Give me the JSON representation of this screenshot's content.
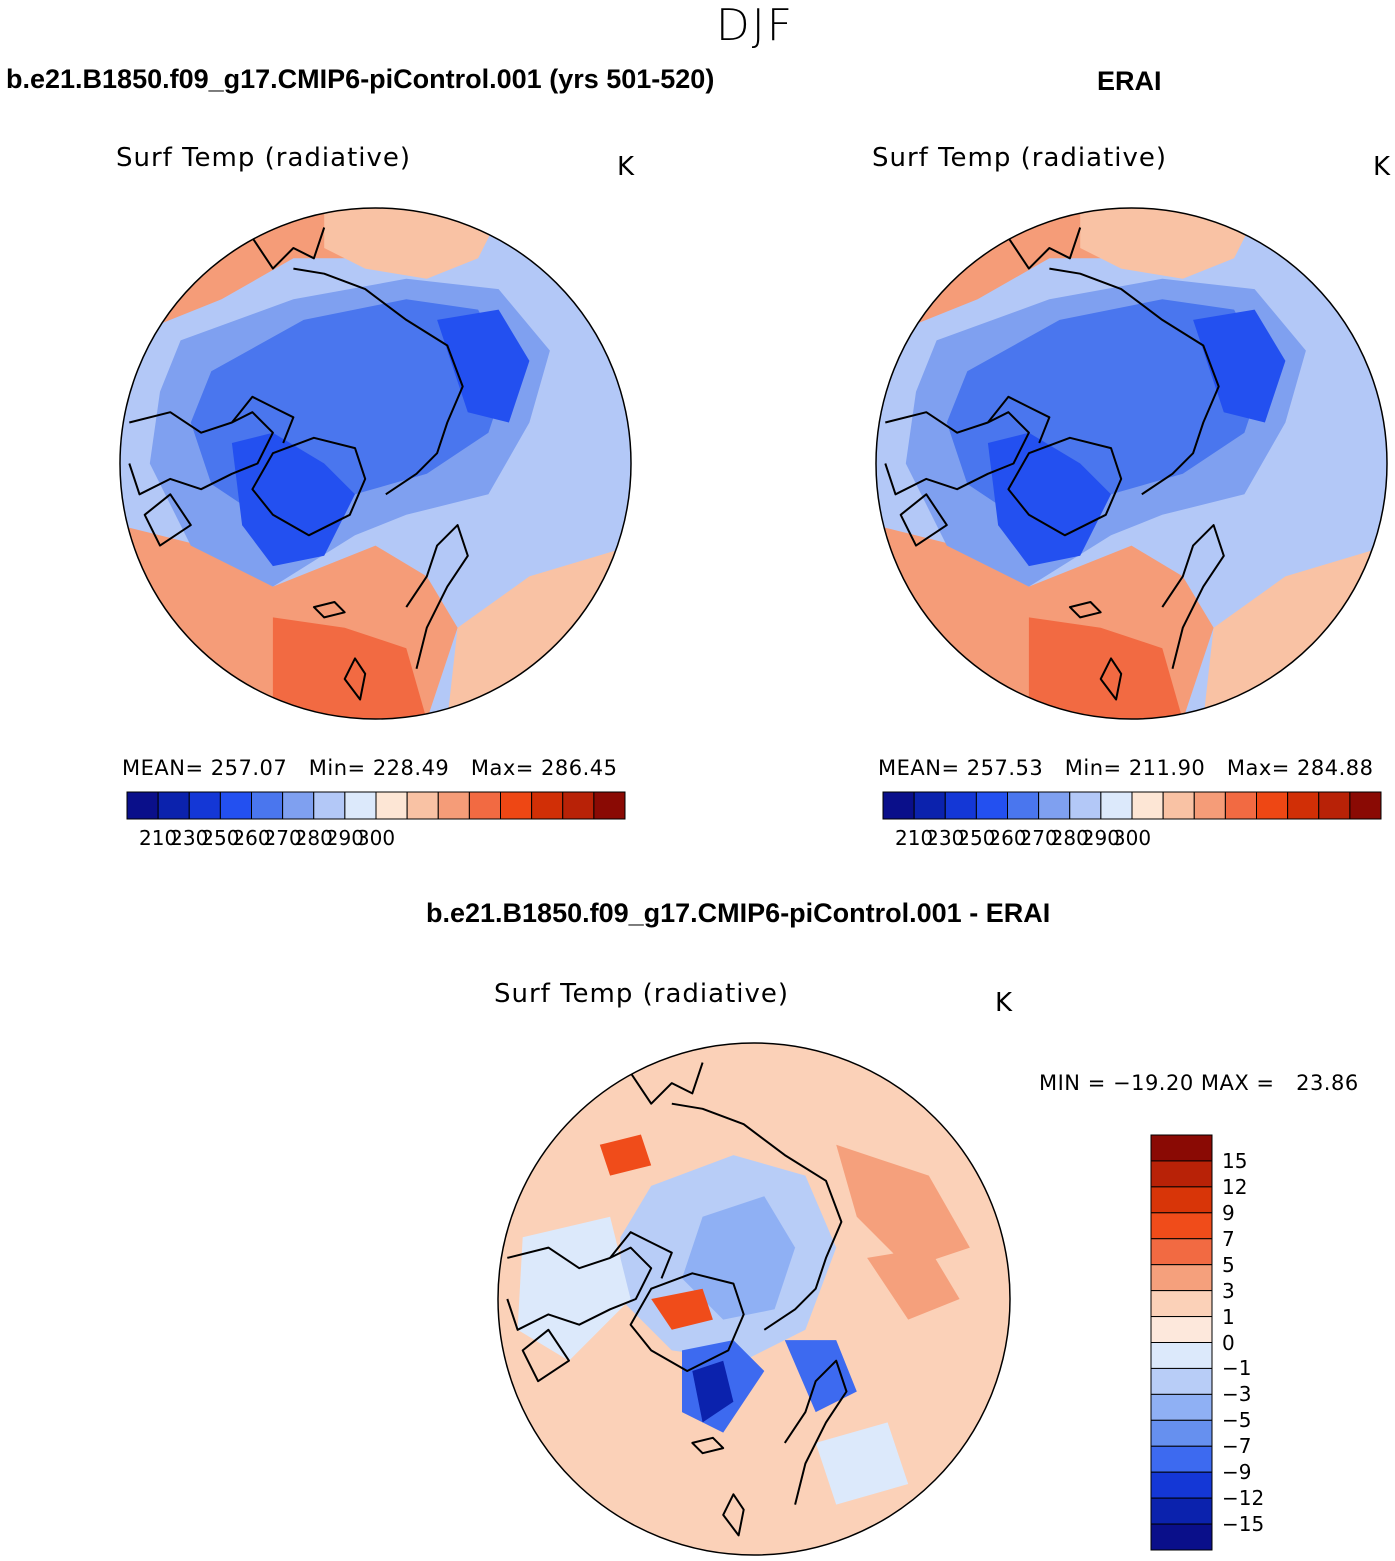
{
  "figure": {
    "season": "DJF"
  },
  "panels": [
    {
      "title": "b.e21.B1850.f09_g17.CMIP6-piControl.001 (yrs 501-520)",
      "variable": "Surf Temp (radiative)",
      "units": "K",
      "stats": {
        "mean_label": "MEAN=",
        "mean": "257.07",
        "min_label": "Min=",
        "min": "228.49",
        "max_label": "Max=",
        "max": "286.45"
      }
    },
    {
      "title": "ERAI",
      "variable": "Surf Temp (radiative)",
      "units": "K",
      "stats": {
        "mean_label": "MEAN=",
        "mean": "257.53",
        "min_label": "Min=",
        "min": "211.90",
        "max_label": "Max=",
        "max": "284.88"
      }
    },
    {
      "title": "b.e21.B1850.f09_g17.CMIP6-piControl.001 - ERAI",
      "variable": "Surf Temp (radiative)",
      "units": "K",
      "stats": {
        "min_label": "MIN =",
        "min": "−19.20",
        "max_label": "MAX =",
        "max": "23.86"
      }
    }
  ],
  "colorbars": {
    "absolute": {
      "colors": [
        "#0a0f8a",
        "#0b22ad",
        "#1437d6",
        "#2350f0",
        "#4a76ee",
        "#7fa0f0",
        "#b3c8f7",
        "#dce9fb",
        "#fde6d5",
        "#f9c2a4",
        "#f59c78",
        "#f26a42",
        "#ee4714",
        "#d12f06",
        "#b82207",
        "#8a0a04"
      ],
      "labels": [
        "210",
        "230",
        "250",
        "260",
        "270",
        "280",
        "290",
        "300"
      ]
    },
    "difference": {
      "colors": [
        "#8a0a04",
        "#b82207",
        "#d83508",
        "#f04c1a",
        "#f26a42",
        "#f5a07c",
        "#fbd1b8",
        "#fde8dc",
        "#dce9fb",
        "#b8cdf7",
        "#8fb0f4",
        "#6690ef",
        "#3d6af0",
        "#1437d6",
        "#0b22ad",
        "#0a0f8a"
      ],
      "labels": [
        "15",
        "12",
        "9",
        "7",
        "5",
        "3",
        "1",
        "0",
        "−1",
        "−3",
        "−5",
        "−7",
        "−9",
        "−12",
        "−15"
      ]
    }
  },
  "map_fields": {
    "model": {
      "ocean_warm": "#f59c78",
      "ocean_cool": "#f9c2a4",
      "mid": "#b3c8f7",
      "land": "#7fa0f0",
      "cold": "#4a76ee",
      "colder": "#2350f0",
      "hot": "#f26a42"
    },
    "erai": {
      "ocean_warm": "#f59c78",
      "ocean_cool": "#f9c2a4",
      "mid": "#b3c8f7",
      "land": "#7fa0f0",
      "cold": "#4a76ee",
      "colder": "#2350f0",
      "hot": "#f26a42"
    },
    "diff": {
      "base": "#fbd1b8",
      "light_blue": "#dce9fb",
      "blue": "#b8cdf7",
      "mid_blue": "#8fb0f4",
      "strong_blue": "#3d6af0",
      "deep_blue": "#0b22ad",
      "warm": "#f5a07c",
      "hot": "#f04c1a"
    }
  }
}
